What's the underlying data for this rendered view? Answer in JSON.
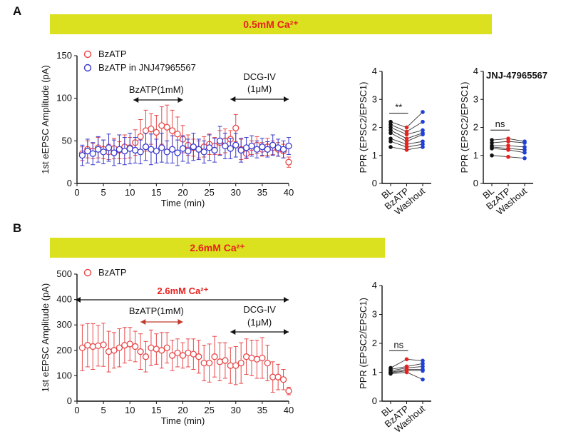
{
  "panels": {
    "a": "A",
    "b": "B"
  },
  "banners": {
    "a": "0.5mM Ca²⁺",
    "b": "2.6mM Ca²⁺"
  },
  "chart_data": [
    {
      "type": "scatter",
      "id": "a_time",
      "xlabel": "Time (min)",
      "ylabel": "1st eEPSC Amplitude (pA)",
      "xlim": [
        0,
        40
      ],
      "ylim": [
        0,
        150
      ],
      "xticks": [
        "0",
        "5",
        "10",
        "15",
        "20",
        "25",
        "30",
        "35",
        "40"
      ],
      "yticks": [
        "0",
        "50",
        "100",
        "150"
      ],
      "legend": [
        "BzATP",
        "BzATP in JNJ47965567"
      ],
      "legend_position": "top-left",
      "annotations": {
        "drug": "BzATP(1mM)",
        "dcg1": "DCG-IV",
        "dcg2": "(1μM)"
      },
      "drug_range": [
        10,
        20
      ],
      "dcg_range": [
        29,
        40
      ],
      "series": [
        {
          "name": "BzATP",
          "color": "#e8484a",
          "x": [
            1,
            2,
            3,
            4,
            5,
            6,
            7,
            8,
            9,
            10,
            11,
            12,
            13,
            14,
            15,
            16,
            17,
            18,
            19,
            20,
            21,
            22,
            23,
            24,
            25,
            26,
            27,
            28,
            29,
            30,
            31,
            32,
            33,
            34,
            35,
            36,
            37,
            38,
            39,
            40
          ],
          "y": [
            35,
            40,
            38,
            42,
            40,
            37,
            41,
            39,
            43,
            42,
            48,
            55,
            62,
            64,
            60,
            68,
            66,
            62,
            58,
            52,
            45,
            42,
            40,
            43,
            46,
            44,
            48,
            50,
            52,
            65,
            40,
            35,
            42,
            45,
            40,
            43,
            42,
            40,
            38,
            25
          ],
          "err": [
            8,
            10,
            9,
            12,
            11,
            9,
            12,
            10,
            14,
            12,
            15,
            20,
            24,
            18,
            20,
            22,
            26,
            24,
            20,
            16,
            12,
            10,
            10,
            12,
            12,
            10,
            14,
            14,
            10,
            16,
            12,
            6,
            8,
            10,
            8,
            10,
            8,
            8,
            8,
            6
          ]
        },
        {
          "name": "BzATP in JNJ47965567",
          "color": "#3a3acd",
          "x": [
            1,
            2,
            3,
            4,
            5,
            6,
            7,
            8,
            9,
            10,
            11,
            12,
            13,
            14,
            15,
            16,
            17,
            18,
            19,
            20,
            21,
            22,
            23,
            24,
            25,
            26,
            27,
            28,
            29,
            30,
            31,
            32,
            33,
            34,
            35,
            36,
            37,
            38,
            39,
            40
          ],
          "y": [
            33,
            38,
            35,
            40,
            37,
            42,
            36,
            40,
            38,
            41,
            39,
            37,
            43,
            40,
            38,
            42,
            37,
            40,
            36,
            41,
            38,
            43,
            40,
            37,
            42,
            39,
            50,
            44,
            41,
            45,
            39,
            42,
            44,
            40,
            43,
            40,
            45,
            42,
            40,
            44
          ],
          "err": [
            12,
            14,
            13,
            15,
            14,
            16,
            15,
            17,
            16,
            18,
            15,
            14,
            16,
            18,
            14,
            17,
            13,
            16,
            15,
            15,
            14,
            16,
            12,
            13,
            15,
            14,
            17,
            15,
            12,
            14,
            14,
            12,
            12,
            10,
            10,
            9,
            12,
            10,
            10,
            10
          ]
        }
      ]
    },
    {
      "type": "line",
      "id": "a_ppr1",
      "ylabel": "PPR (EPSC2/EPSC1)",
      "ylim": [
        0,
        4
      ],
      "yticks": [
        "0",
        "1",
        "2",
        "3",
        "4"
      ],
      "categories": [
        "BL",
        "BzATP",
        "Washout"
      ],
      "category_colors": [
        "#111111",
        "#e8211e",
        "#1f3fd9"
      ],
      "significance": "**",
      "significance_pair": [
        0,
        1
      ],
      "series": [
        {
          "values": [
            2.2,
            2.0,
            2.55
          ]
        },
        {
          "values": [
            2.1,
            1.85,
            2.2
          ]
        },
        {
          "values": [
            2.0,
            1.75,
            1.9
          ]
        },
        {
          "values": [
            1.9,
            1.6,
            1.8
          ]
        },
        {
          "values": [
            1.8,
            1.5,
            1.75
          ]
        },
        {
          "values": [
            1.6,
            1.4,
            1.5
          ]
        },
        {
          "values": [
            1.5,
            1.3,
            1.4
          ]
        },
        {
          "values": [
            1.3,
            1.2,
            1.3
          ]
        }
      ]
    },
    {
      "type": "line",
      "id": "a_ppr2",
      "title": "JNJ-47965567",
      "ylabel": "PPR (EPSC2/EPSC1)",
      "ylim": [
        0,
        4
      ],
      "yticks": [
        "0",
        "1",
        "2",
        "3",
        "4"
      ],
      "categories": [
        "BL",
        "BzATP",
        "Washout"
      ],
      "category_colors": [
        "#111111",
        "#e8211e",
        "#1f3fd9"
      ],
      "significance": "ns",
      "significance_pair": [
        0,
        1
      ],
      "series": [
        {
          "values": [
            1.55,
            1.6,
            1.5
          ]
        },
        {
          "values": [
            1.45,
            1.5,
            1.45
          ]
        },
        {
          "values": [
            1.35,
            1.35,
            1.3
          ]
        },
        {
          "values": [
            1.3,
            1.25,
            1.2
          ]
        },
        {
          "values": [
            1.25,
            1.2,
            1.1
          ]
        },
        {
          "values": [
            1.0,
            0.95,
            0.9
          ]
        }
      ]
    },
    {
      "type": "scatter",
      "id": "b_time",
      "xlabel": "Time (min)",
      "ylabel": "1st eEPSC Amplitude (pA)",
      "xlim": [
        0,
        40
      ],
      "ylim": [
        0,
        500
      ],
      "xticks": [
        "0",
        "5",
        "10",
        "15",
        "20",
        "25",
        "30",
        "35",
        "40"
      ],
      "yticks": [
        "0",
        "100",
        "200",
        "300",
        "400",
        "500"
      ],
      "legend": [
        "BzATP"
      ],
      "legend_position": "top-left",
      "annotations": {
        "full": "2.6mM Ca²⁺",
        "drug": "BzATP(1mM)",
        "dcg1": "DCG-IV",
        "dcg2": "(1μM)"
      },
      "drug_range": [
        10,
        20
      ],
      "dcg_range": [
        29,
        40
      ],
      "series": [
        {
          "name": "BzATP",
          "color": "#e8484a",
          "x": [
            1,
            2,
            3,
            4,
            5,
            6,
            7,
            8,
            9,
            10,
            11,
            12,
            13,
            14,
            15,
            16,
            17,
            18,
            19,
            20,
            21,
            22,
            23,
            24,
            25,
            26,
            27,
            28,
            29,
            30,
            31,
            32,
            33,
            34,
            35,
            36,
            37,
            38,
            39,
            40
          ],
          "y": [
            210,
            220,
            215,
            218,
            222,
            195,
            200,
            210,
            220,
            225,
            215,
            195,
            175,
            210,
            205,
            200,
            210,
            180,
            190,
            180,
            190,
            185,
            175,
            150,
            150,
            175,
            155,
            160,
            140,
            140,
            150,
            175,
            170,
            165,
            170,
            150,
            95,
            95,
            85,
            40
          ],
          "err": [
            90,
            85,
            90,
            80,
            85,
            80,
            70,
            75,
            70,
            65,
            60,
            70,
            60,
            70,
            60,
            70,
            60,
            60,
            55,
            50,
            55,
            60,
            65,
            70,
            75,
            80,
            75,
            70,
            70,
            75,
            80,
            70,
            70,
            75,
            80,
            70,
            60,
            50,
            40,
            15
          ]
        }
      ]
    },
    {
      "type": "line",
      "id": "b_ppr",
      "ylabel": "PPR (EPSC2/EPSC1)",
      "ylim": [
        0,
        4
      ],
      "yticks": [
        "0",
        "1",
        "2",
        "3",
        "4"
      ],
      "categories": [
        "BL",
        "BzATP",
        "Washout"
      ],
      "category_colors": [
        "#111111",
        "#e8211e",
        "#1f3fd9"
      ],
      "significance": "ns",
      "significance_pair": [
        0,
        1
      ],
      "series": [
        {
          "values": [
            1.15,
            1.45,
            1.4
          ]
        },
        {
          "values": [
            1.1,
            1.2,
            1.3
          ]
        },
        {
          "values": [
            1.05,
            1.15,
            1.2
          ]
        },
        {
          "values": [
            1.0,
            1.1,
            1.1
          ]
        },
        {
          "values": [
            0.98,
            1.05,
            1.05
          ]
        },
        {
          "values": [
            0.95,
            1.0,
            0.75
          ]
        }
      ]
    }
  ]
}
